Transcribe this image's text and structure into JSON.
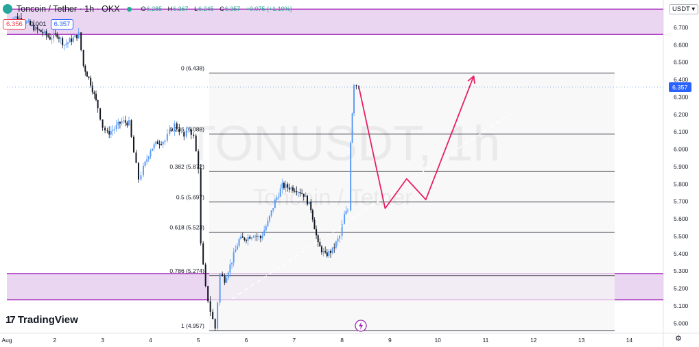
{
  "header": {
    "title": "Toncoin / Tether · 1h · OKX",
    "ohlc": [
      {
        "label": "O",
        "value": "6.285"
      },
      {
        "label": "H",
        "value": "6.367"
      },
      {
        "label": "L",
        "value": "6.245"
      },
      {
        "label": "C",
        "value": "6.357"
      }
    ],
    "change": "+0.075 (+1.19%)",
    "sell_price": "6.356",
    "spread": "0.001",
    "buy_price": "6.357"
  },
  "currency_button": "USDT",
  "watermark": {
    "symbol": "TONUSDT, 1h",
    "name": "Toncoin / Tether"
  },
  "brand": "TradingView",
  "colors": {
    "up": "#5b9cf6",
    "down": "#131722",
    "zone_fill": "#e7cff0",
    "zone_border": "#a021b8",
    "fib_line": "#131722",
    "arrow": "#e91e63",
    "trend_dash": "#ffffff"
  },
  "chart_data": {
    "type": "candlestick",
    "timeframe": "1h",
    "x_ticks": [
      "Aug",
      "2",
      "3",
      "4",
      "5",
      "6",
      "7",
      "8",
      "9",
      "10",
      "11",
      "12",
      "13",
      "14"
    ],
    "y_ticks": [
      "6.700",
      "6.600",
      "6.500",
      "6.400",
      "6.300",
      "6.200",
      "6.100",
      "6.000",
      "5.900",
      "5.800",
      "5.700",
      "5.600",
      "5.500",
      "5.400",
      "5.300",
      "5.200",
      "5.100",
      "5.000"
    ],
    "ylim": [
      4.96,
      6.83
    ],
    "last_price": "6.357",
    "fib_levels": [
      {
        "ratio": "0",
        "price": "6.438"
      },
      {
        "ratio": "0.236",
        "price": "6.088"
      },
      {
        "ratio": "0.382",
        "price": "5.872"
      },
      {
        "ratio": "0.5",
        "price": "5.697"
      },
      {
        "ratio": "0.618",
        "price": "5.523"
      },
      {
        "ratio": "0.786",
        "price": "5.274"
      },
      {
        "ratio": "1",
        "price": "4.957"
      }
    ],
    "zones": [
      {
        "from": 6.66,
        "to": 6.805
      },
      {
        "from": 5.135,
        "to": 5.285
      }
    ],
    "projection": [
      {
        "day": 8.35,
        "price": 6.36
      },
      {
        "day": 8.9,
        "price": 5.66
      },
      {
        "day": 9.35,
        "price": 5.83
      },
      {
        "day": 9.75,
        "price": 5.71
      },
      {
        "day": 10.75,
        "price": 6.42
      }
    ],
    "trendline": [
      {
        "day": 5.7,
        "price": 5.14
      },
      {
        "day": 11.5,
        "price": 6.2
      }
    ],
    "price_path": [
      [
        1.0,
        6.71
      ],
      [
        1.15,
        6.76
      ],
      [
        1.3,
        6.75
      ],
      [
        1.45,
        6.72
      ],
      [
        1.6,
        6.69
      ],
      [
        1.75,
        6.67
      ],
      [
        1.9,
        6.64
      ],
      [
        2.05,
        6.66
      ],
      [
        2.2,
        6.6
      ],
      [
        2.35,
        6.63
      ],
      [
        2.5,
        6.66
      ],
      [
        2.6,
        6.48
      ],
      [
        2.75,
        6.38
      ],
      [
        2.9,
        6.24
      ],
      [
        3.0,
        6.13
      ],
      [
        3.1,
        6.09
      ],
      [
        3.25,
        6.12
      ],
      [
        3.4,
        6.16
      ],
      [
        3.55,
        6.15
      ],
      [
        3.65,
        5.98
      ],
      [
        3.75,
        5.83
      ],
      [
        3.85,
        5.89
      ],
      [
        4.0,
        6.0
      ],
      [
        4.15,
        6.04
      ],
      [
        4.3,
        6.05
      ],
      [
        4.4,
        6.1
      ],
      [
        4.5,
        6.14
      ],
      [
        4.6,
        6.11
      ],
      [
        4.7,
        6.07
      ],
      [
        4.8,
        6.12
      ],
      [
        4.9,
        6.07
      ],
      [
        5.0,
        5.9
      ],
      [
        5.05,
        5.45
      ],
      [
        5.15,
        5.2
      ],
      [
        5.25,
        5.07
      ],
      [
        5.35,
        4.97
      ],
      [
        5.45,
        5.28
      ],
      [
        5.55,
        5.25
      ],
      [
        5.7,
        5.36
      ],
      [
        5.85,
        5.48
      ],
      [
        6.0,
        5.49
      ],
      [
        6.15,
        5.51
      ],
      [
        6.3,
        5.49
      ],
      [
        6.45,
        5.58
      ],
      [
        6.6,
        5.7
      ],
      [
        6.75,
        5.79
      ],
      [
        6.9,
        5.78
      ],
      [
        7.05,
        5.77
      ],
      [
        7.2,
        5.74
      ],
      [
        7.35,
        5.66
      ],
      [
        7.5,
        5.45
      ],
      [
        7.65,
        5.39
      ],
      [
        7.8,
        5.42
      ],
      [
        7.95,
        5.5
      ],
      [
        8.05,
        5.62
      ],
      [
        8.12,
        5.65
      ],
      [
        8.18,
        6.05
      ],
      [
        8.25,
        6.38
      ],
      [
        8.35,
        6.36
      ]
    ]
  }
}
